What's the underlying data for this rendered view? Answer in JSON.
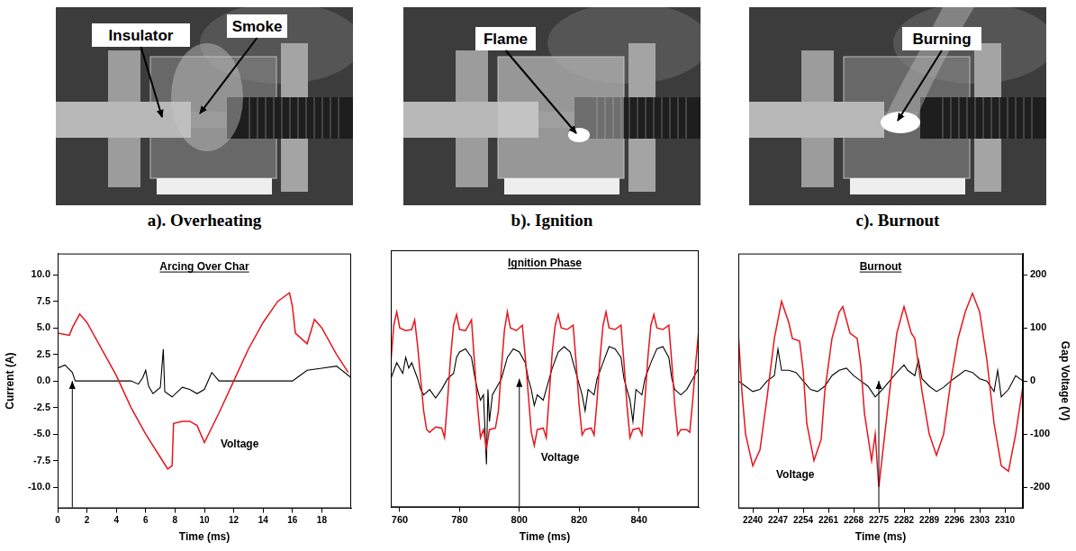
{
  "photos": [
    {
      "caption": "a). Overheating",
      "labels": [
        "Insulator",
        "Smoke"
      ]
    },
    {
      "caption": "b). Ignition",
      "labels": [
        "Flame"
      ]
    },
    {
      "caption": "c). Burnout",
      "labels": [
        "Burning"
      ]
    }
  ],
  "chart_data": [
    {
      "type": "line",
      "title": "Arcing Over Char",
      "x_label": "Time (ms)",
      "y_label": "Current (A)",
      "xlim": [
        0,
        20
      ],
      "xticks": [
        0,
        2,
        4,
        6,
        8,
        10,
        12,
        14,
        16,
        18
      ],
      "ylim": [
        -12,
        12
      ],
      "yticks": [
        {
          "value": -10,
          "label": "-10.0"
        },
        -7.5,
        {
          "value": -5,
          "label": "-5.0"
        },
        -2.5,
        {
          "value": 0,
          "label": "0.0"
        },
        2.5,
        {
          "value": 5,
          "label": "5.0"
        },
        7.5,
        {
          "value": 10,
          "label": "10.0"
        }
      ],
      "y2lim": [
        -240,
        240
      ],
      "grid": false,
      "arrow_at": 1,
      "series": [
        {
          "name": "Voltage",
          "color": "#e8141c",
          "axis": "y2",
          "x": [
            0,
            0.8,
            1,
            1.5,
            2,
            3,
            4,
            5,
            6,
            7,
            7.5,
            7.8,
            7.9,
            8.5,
            9,
            9.5,
            10,
            11,
            12,
            13,
            14,
            15,
            15.8,
            16,
            16.2,
            17,
            17.5,
            18,
            19,
            19.8
          ],
          "values": [
            90,
            86,
            100,
            126,
            110,
            60,
            10,
            -50,
            -100,
            -144,
            -166,
            -160,
            -80,
            -76,
            -76,
            -84,
            -116,
            -60,
            0,
            60,
            110,
            150,
            166,
            140,
            90,
            70,
            116,
            100,
            50,
            16
          ]
        },
        {
          "color": "#000000",
          "x": [
            0,
            0.5,
            1,
            1.2,
            3,
            5,
            5.5,
            5.8,
            6,
            6.2,
            6.5,
            7,
            7.2,
            7.3,
            7.8,
            8.5,
            9,
            9.5,
            10,
            10.5,
            11,
            12,
            14,
            16,
            16.5,
            17,
            18,
            19,
            20
          ],
          "values": [
            1.2,
            1.5,
            0.8,
            0,
            0,
            0,
            -0.3,
            0.3,
            1,
            -0.5,
            -1.2,
            -0.6,
            3,
            -1,
            -1.5,
            -0.6,
            -0.8,
            -1.2,
            -0.8,
            0.8,
            0,
            0,
            0,
            0,
            0.5,
            1,
            1.2,
            1.4,
            0.3
          ]
        }
      ]
    },
    {
      "type": "line",
      "title": "Ignition Phase",
      "x_label": "Time (ms)",
      "xlim": [
        757,
        860
      ],
      "xticks": [
        760,
        780,
        800,
        820,
        840
      ],
      "ylim": [
        -12,
        12
      ],
      "y2lim": [
        -240,
        240
      ],
      "grid": false,
      "tick_labels": "x",
      "arrow_at": 800,
      "series": [
        {
          "name": "Voltage",
          "color": "#e8141c",
          "axis": "y2",
          "x": [
            757,
            758,
            759,
            760,
            762,
            764,
            765,
            766,
            767,
            768,
            769,
            770,
            772,
            774,
            775,
            776,
            777,
            778,
            779,
            780,
            782,
            784,
            785,
            786,
            787,
            788,
            789,
            790,
            792,
            793,
            794,
            795,
            796,
            797,
            799,
            801,
            802,
            803,
            804,
            805,
            806,
            808,
            809,
            810,
            811,
            812,
            813,
            814,
            816,
            818,
            819,
            820,
            821,
            822,
            824,
            825,
            826,
            827,
            828,
            829,
            830,
            832,
            834,
            835,
            836,
            837,
            838,
            840,
            841,
            842,
            843,
            844,
            845,
            846,
            848,
            850,
            851,
            852,
            853,
            854,
            856,
            857,
            858,
            859,
            860
          ],
          "values": [
            30,
            100,
            125,
            95,
            90,
            92,
            110,
            60,
            0,
            -60,
            -95,
            -100,
            -90,
            -92,
            -110,
            -40,
            40,
            100,
            120,
            92,
            90,
            110,
            30,
            -50,
            -110,
            -95,
            -130,
            -95,
            -92,
            -60,
            20,
            90,
            125,
            95,
            90,
            100,
            40,
            -30,
            -100,
            -125,
            -95,
            -92,
            -110,
            -30,
            50,
            100,
            120,
            95,
            92,
            100,
            30,
            -50,
            -105,
            -95,
            -92,
            -105,
            -40,
            40,
            100,
            125,
            95,
            92,
            100,
            30,
            -50,
            -110,
            -95,
            -92,
            -105,
            -40,
            40,
            100,
            120,
            95,
            92,
            100,
            30,
            -50,
            -105,
            -95,
            -95,
            -100,
            -40,
            30,
            90
          ]
        },
        {
          "color": "#000000",
          "x": [
            757,
            759,
            761,
            762,
            763,
            764,
            766,
            767,
            768,
            770,
            772,
            774,
            776,
            778,
            779,
            780,
            782,
            784,
            785,
            786,
            787,
            788,
            789,
            789.5,
            790,
            791,
            793,
            794,
            796,
            798,
            800,
            802,
            803,
            804,
            805,
            806,
            808,
            810,
            811,
            813,
            815,
            817,
            819,
            820,
            821,
            822,
            823,
            825,
            826,
            828,
            830,
            832,
            834,
            835,
            836,
            837,
            838,
            839,
            841,
            842,
            844,
            846,
            848,
            850,
            851,
            852,
            854,
            856,
            858,
            860
          ],
          "values": [
            0,
            1.5,
            0.5,
            2,
            1,
            1.5,
            0,
            -1,
            -1.5,
            -1,
            -1.8,
            -1,
            0,
            0.5,
            2,
            2.5,
            2.8,
            2,
            0.3,
            -1,
            -2,
            -1.5,
            -8,
            -1,
            -4,
            -1.5,
            -0.5,
            0,
            2,
            2.8,
            2.5,
            1.5,
            0,
            -1,
            -2.5,
            -1.5,
            -2,
            0,
            1,
            2.5,
            3,
            2.5,
            0.5,
            -0.5,
            -1.5,
            -3,
            -1,
            -1.5,
            0,
            1.5,
            3,
            2.8,
            2,
            0,
            -1,
            -2,
            -4,
            -1,
            -1.5,
            0,
            1.5,
            2.8,
            3,
            2,
            0,
            -1,
            -1.5,
            -1,
            0,
            1
          ]
        }
      ]
    },
    {
      "type": "line",
      "title": "Burnout",
      "x_label": "Time (ms)",
      "y2_label": "Gap Voltage (V)",
      "xlim": [
        2236,
        2315
      ],
      "xticks": [
        2240,
        2247,
        2254,
        2261,
        2268,
        2275,
        2282,
        2289,
        2296,
        2303,
        2310
      ],
      "ylim": [
        -12,
        12
      ],
      "y2lim": [
        -240,
        240
      ],
      "y2ticks": [
        -200,
        -100,
        0,
        100,
        200
      ],
      "grid": false,
      "arrow_at": 2275,
      "series": [
        {
          "name": "Voltage",
          "color": "#e8141c",
          "axis": "y2",
          "x": [
            2236,
            2237,
            2238,
            2240,
            2242,
            2244,
            2246,
            2248,
            2250,
            2251,
            2253,
            2254,
            2255,
            2257,
            2259,
            2260,
            2262,
            2264,
            2265,
            2267,
            2269,
            2270,
            2271,
            2273,
            2274,
            2275,
            2276,
            2278,
            2280,
            2282,
            2284,
            2285,
            2287,
            2289,
            2291,
            2293,
            2295,
            2297,
            2299,
            2301,
            2303,
            2305,
            2307,
            2309,
            2311,
            2313,
            2315
          ],
          "values": [
            90,
            -20,
            -100,
            -160,
            -130,
            -30,
            80,
            150,
            110,
            80,
            75,
            20,
            -80,
            -150,
            -110,
            -20,
            80,
            130,
            140,
            90,
            80,
            30,
            -60,
            -150,
            -100,
            -200,
            -140,
            -20,
            90,
            140,
            90,
            80,
            -20,
            -100,
            -140,
            -100,
            0,
            80,
            130,
            165,
            130,
            40,
            -80,
            -160,
            -170,
            -100,
            -10
          ]
        },
        {
          "color": "#000000",
          "x": [
            2236,
            2238,
            2240,
            2242,
            2244,
            2246,
            2247,
            2248,
            2250,
            2252,
            2254,
            2256,
            2258,
            2260,
            2262,
            2264,
            2266,
            2268,
            2270,
            2272,
            2273,
            2274,
            2276,
            2278,
            2280,
            2282,
            2283,
            2285,
            2286,
            2287,
            2289,
            2291,
            2293,
            2295,
            2297,
            2299,
            2301,
            2303,
            2305,
            2307,
            2308,
            2309,
            2311,
            2313,
            2315
          ],
          "values": [
            0,
            -0.5,
            -1,
            -0.8,
            0,
            0.5,
            3,
            1,
            1,
            0.8,
            0,
            -0.8,
            -1,
            -0.5,
            0.5,
            1,
            1.2,
            0.5,
            0,
            -0.5,
            -1,
            -1.5,
            -0.8,
            0,
            0.8,
            1.5,
            1,
            0.5,
            2,
            0.2,
            -0.5,
            -1,
            -0.6,
            0,
            0.5,
            1,
            0.8,
            0.2,
            0,
            -1,
            1,
            -1.5,
            -0.8,
            0.5,
            0
          ]
        }
      ]
    }
  ]
}
